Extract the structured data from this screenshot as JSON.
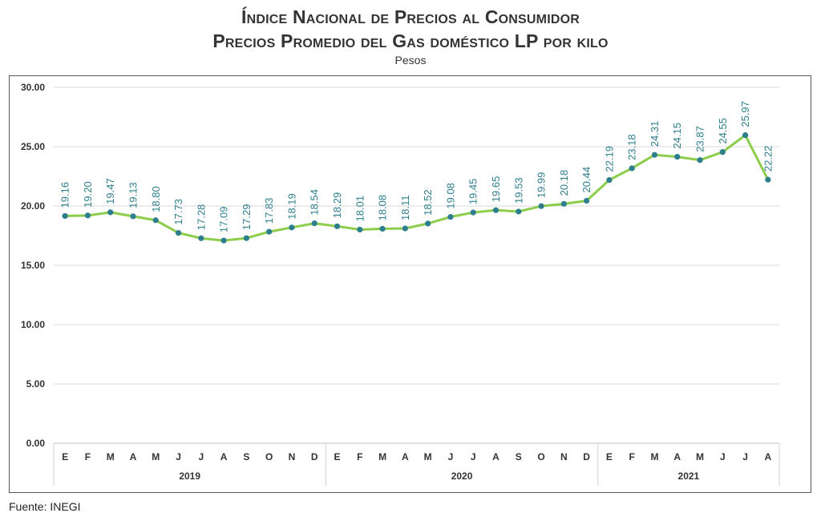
{
  "title_line1": "Índice Nacional de Precios al Consumidor",
  "title_line2": "Precios Promedio del Gas doméstico LP por kilo",
  "subtitle": "Pesos",
  "source": "Fuente: INEGI",
  "colors": {
    "line": "#8ccd4b",
    "marker": "#2e7f8e",
    "label": "#2e7f8e",
    "grid": "#d9d9d9"
  },
  "chart_data": {
    "type": "line",
    "title": "Índice Nacional de Precios al Consumidor / Precios Promedio del Gas doméstico LP por kilo",
    "subtitle": "Pesos",
    "ylim": [
      0,
      30
    ],
    "yticks": [
      "0.00",
      "5.00",
      "10.00",
      "15.00",
      "20.00",
      "25.00",
      "30.00"
    ],
    "grid": "horizontal",
    "legend": "none",
    "categories": [
      "E",
      "F",
      "M",
      "A",
      "M",
      "J",
      "J",
      "A",
      "S",
      "O",
      "N",
      "D",
      "E",
      "F",
      "M",
      "A",
      "M",
      "J",
      "J",
      "A",
      "S",
      "O",
      "N",
      "D",
      "E",
      "F",
      "M",
      "A",
      "M",
      "J",
      "J",
      "A"
    ],
    "years": [
      {
        "label": "2019",
        "count": 12
      },
      {
        "label": "2020",
        "count": 12
      },
      {
        "label": "2021",
        "count": 8
      }
    ],
    "series": [
      {
        "values": [
          19.16,
          19.2,
          19.47,
          19.13,
          18.8,
          17.73,
          17.28,
          17.09,
          17.29,
          17.83,
          18.19,
          18.54,
          18.29,
          18.01,
          18.08,
          18.11,
          18.52,
          19.08,
          19.45,
          19.65,
          19.53,
          19.99,
          20.18,
          20.44,
          22.19,
          23.18,
          24.31,
          24.15,
          23.87,
          24.55,
          25.97,
          22.22
        ],
        "labels": [
          "19.16",
          "19.20",
          "19.47",
          "19.13",
          "18.80",
          "17.73",
          "17.28",
          "17.09",
          "17.29",
          "17.83",
          "18.19",
          "18.54",
          "18.29",
          "18.01",
          "18.08",
          "18.11",
          "18.52",
          "19.08",
          "19.45",
          "19.65",
          "19.53",
          "19.99",
          "20.18",
          "20.44",
          "22.19",
          "23.18",
          "24.31",
          "24.15",
          "23.87",
          "24.55",
          "25.97",
          "22.22"
        ]
      }
    ]
  }
}
